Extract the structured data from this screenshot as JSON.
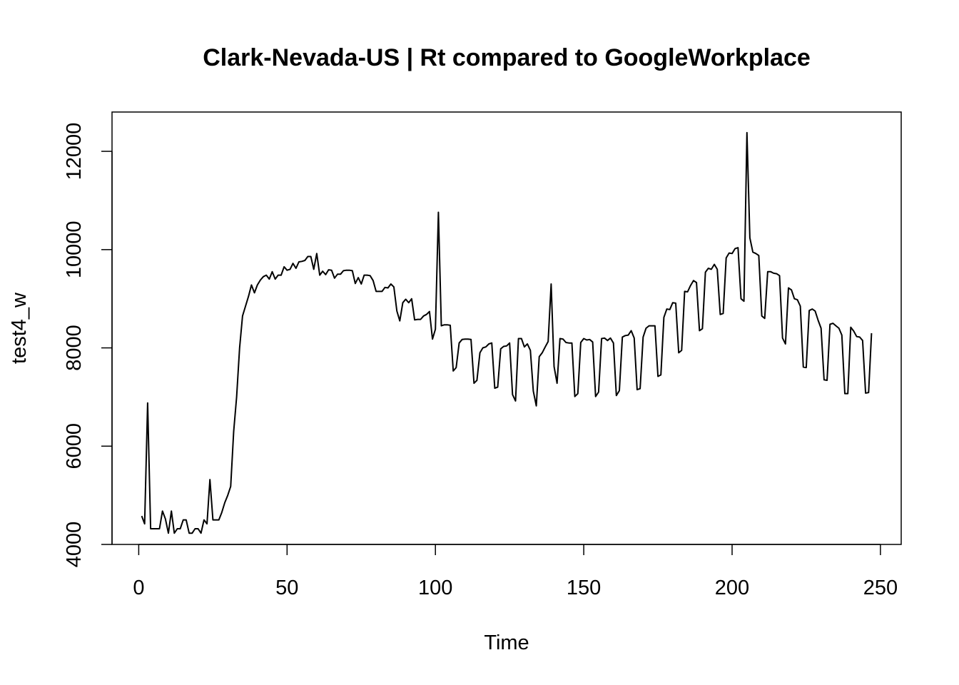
{
  "chart_data": {
    "type": "line",
    "title": "Clark-Nevada-US | Rt compared to GoogleWorkplace",
    "xlabel": "Time",
    "ylabel": "test4_w",
    "xlim": [
      -9,
      257
    ],
    "ylim": [
      4000,
      12800
    ],
    "x_ticks": [
      0,
      50,
      100,
      150,
      200,
      250
    ],
    "x_tick_labels": [
      "0",
      "50",
      "100",
      "150",
      "200",
      "250"
    ],
    "y_ticks": [
      4000,
      6000,
      8000,
      10000,
      12000
    ],
    "y_tick_labels": [
      "4000",
      "6000",
      "8000",
      "10000",
      "12000"
    ],
    "grid": false,
    "legend": "none",
    "series": [
      {
        "color": "#000000",
        "x_start": 1,
        "x_step": 1,
        "values": [
          4580,
          4420,
          6880,
          4320,
          4320,
          4320,
          4320,
          4680,
          4520,
          4230,
          4680,
          4230,
          4320,
          4320,
          4500,
          4500,
          4230,
          4230,
          4320,
          4320,
          4230,
          4500,
          4420,
          5320,
          4500,
          4500,
          4500,
          4650,
          4850,
          5000,
          5180,
          6300,
          7000,
          8000,
          8650,
          8850,
          9050,
          9280,
          9120,
          9280,
          9380,
          9450,
          9480,
          9400,
          9550,
          9400,
          9480,
          9480,
          9650,
          9580,
          9600,
          9720,
          9620,
          9750,
          9760,
          9780,
          9860,
          9860,
          9600,
          9920,
          9480,
          9560,
          9490,
          9590,
          9580,
          9420,
          9500,
          9500,
          9570,
          9580,
          9580,
          9570,
          9310,
          9430,
          9300,
          9480,
          9480,
          9470,
          9370,
          9150,
          9150,
          9150,
          9230,
          9220,
          9300,
          9240,
          8750,
          8550,
          8920,
          8990,
          8920,
          9000,
          8570,
          8580,
          8580,
          8650,
          8680,
          8740,
          8180,
          8380,
          10760,
          8450,
          8470,
          8470,
          8460,
          7530,
          7600,
          8100,
          8170,
          8180,
          8180,
          8170,
          7280,
          7340,
          7900,
          8000,
          8020,
          8080,
          8100,
          7180,
          7200,
          7980,
          8030,
          8040,
          8100,
          7050,
          6920,
          8190,
          8190,
          8020,
          8080,
          7950,
          7120,
          6820,
          7820,
          7900,
          8020,
          8130,
          9300,
          7620,
          7280,
          8190,
          8180,
          8110,
          8100,
          8100,
          7010,
          7070,
          8110,
          8190,
          8160,
          8170,
          8120,
          7010,
          7100,
          8190,
          8200,
          8150,
          8200,
          8100,
          7030,
          7130,
          8220,
          8250,
          8260,
          8350,
          8200,
          7150,
          7170,
          8220,
          8400,
          8450,
          8450,
          8450,
          7420,
          7450,
          8620,
          8790,
          8780,
          8920,
          8910,
          7900,
          7950,
          9150,
          9140,
          9270,
          9370,
          9330,
          8350,
          8390,
          9540,
          9620,
          9600,
          9700,
          9600,
          8680,
          8700,
          9830,
          9930,
          9920,
          10020,
          10040,
          9000,
          8950,
          12380,
          10240,
          9950,
          9920,
          9880,
          8650,
          8600,
          9550,
          9550,
          9520,
          9510,
          9470,
          8200,
          8080,
          9220,
          9180,
          9000,
          8980,
          8850,
          7610,
          7600,
          8760,
          8790,
          8750,
          8560,
          8400,
          7350,
          7340,
          8480,
          8500,
          8450,
          8400,
          8260,
          7070,
          7070,
          8420,
          8340,
          8230,
          8220,
          8150,
          7080,
          7090,
          8300
        ]
      }
    ]
  }
}
